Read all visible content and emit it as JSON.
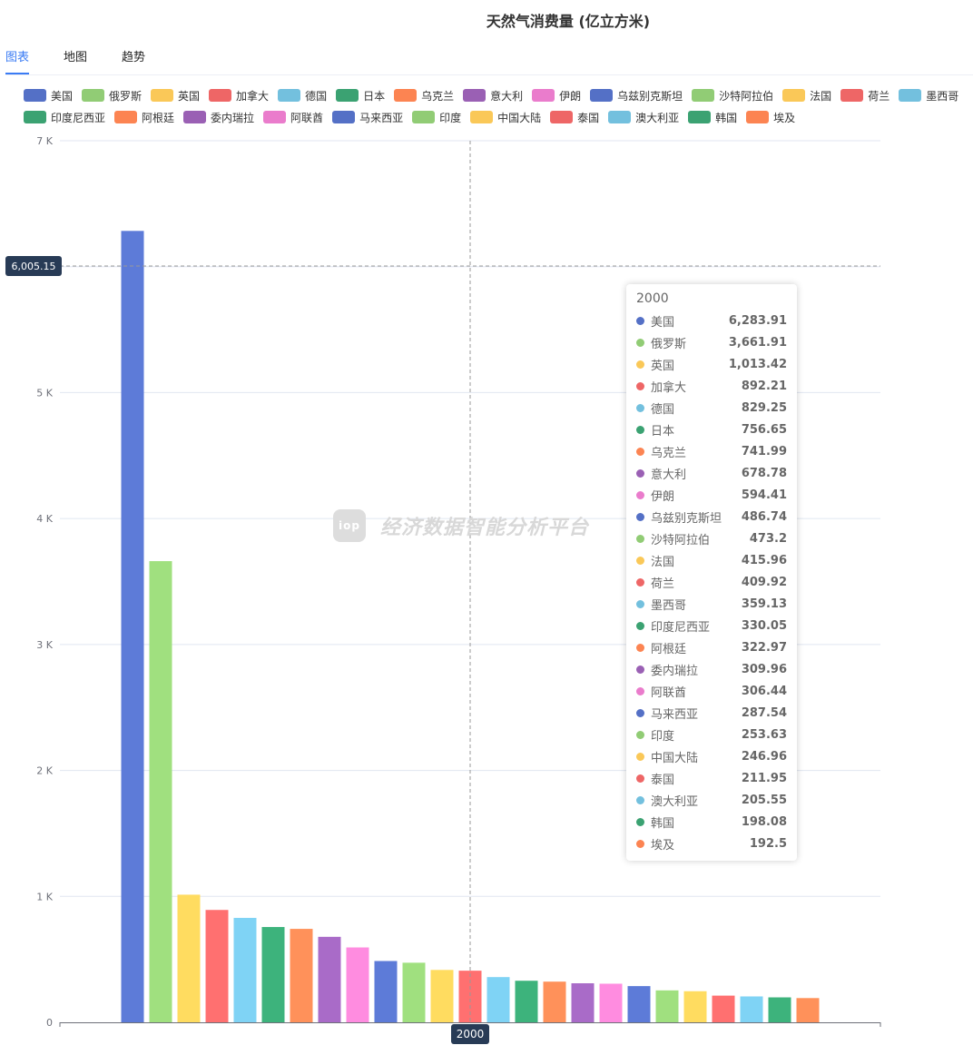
{
  "title": "天然气消费量 (亿立方米)",
  "tabs": [
    {
      "label": "图表",
      "active": true
    },
    {
      "label": "地图"
    },
    {
      "label": "趋势"
    }
  ],
  "watermark": "经济数据智能分析平台",
  "chart_data": {
    "type": "bar",
    "title": "天然气消费量 (亿立方米)",
    "categories": [
      "2000"
    ],
    "ylim": [
      0,
      7000
    ],
    "yticks": [
      "0",
      "1 K",
      "2 K",
      "3 K",
      "4 K",
      "5 K",
      "6 K",
      "7 K"
    ],
    "grid": true,
    "legend_position": "top",
    "crosshair_y_label": "6,005.15",
    "crosshair_x_label": "2000",
    "series": [
      {
        "name": "美国",
        "values": [
          6283.91
        ],
        "value_label": "6,283.91"
      },
      {
        "name": "俄罗斯",
        "values": [
          3661.91
        ],
        "value_label": "3,661.91"
      },
      {
        "name": "英国",
        "values": [
          1013.42
        ],
        "value_label": "1,013.42"
      },
      {
        "name": "加拿大",
        "values": [
          892.21
        ],
        "value_label": "892.21"
      },
      {
        "name": "德国",
        "values": [
          829.25
        ],
        "value_label": "829.25"
      },
      {
        "name": "日本",
        "values": [
          756.65
        ],
        "value_label": "756.65"
      },
      {
        "name": "乌克兰",
        "values": [
          741.99
        ],
        "value_label": "741.99"
      },
      {
        "name": "意大利",
        "values": [
          678.78
        ],
        "value_label": "678.78"
      },
      {
        "name": "伊朗",
        "values": [
          594.41
        ],
        "value_label": "594.41"
      },
      {
        "name": "乌兹别克斯坦",
        "values": [
          486.74
        ],
        "value_label": "486.74"
      },
      {
        "name": "沙特阿拉伯",
        "values": [
          473.2
        ],
        "value_label": "473.2"
      },
      {
        "name": "法国",
        "values": [
          415.96
        ],
        "value_label": "415.96"
      },
      {
        "name": "荷兰",
        "values": [
          409.92
        ],
        "value_label": "409.92"
      },
      {
        "name": "墨西哥",
        "values": [
          359.13
        ],
        "value_label": "359.13"
      },
      {
        "name": "印度尼西亚",
        "values": [
          330.05
        ],
        "value_label": "330.05"
      },
      {
        "name": "阿根廷",
        "values": [
          322.97
        ],
        "value_label": "322.97"
      },
      {
        "name": "委内瑞拉",
        "values": [
          309.96
        ],
        "value_label": "309.96"
      },
      {
        "name": "阿联酋",
        "values": [
          306.44
        ],
        "value_label": "306.44"
      },
      {
        "name": "马来西亚",
        "values": [
          287.54
        ],
        "value_label": "287.54"
      },
      {
        "name": "印度",
        "values": [
          253.63
        ],
        "value_label": "253.63"
      },
      {
        "name": "中国大陆",
        "values": [
          246.96
        ],
        "value_label": "246.96"
      },
      {
        "name": "泰国",
        "values": [
          211.95
        ],
        "value_label": "211.95"
      },
      {
        "name": "澳大利亚",
        "values": [
          205.55
        ],
        "value_label": "205.55"
      },
      {
        "name": "韩国",
        "values": [
          198.08
        ],
        "value_label": "198.08"
      },
      {
        "name": "埃及",
        "values": [
          192.5
        ],
        "value_label": "192.5"
      }
    ],
    "palette": [
      "#5470c6",
      "#91cc75",
      "#fac858",
      "#ee6666",
      "#73c0de",
      "#3ba272",
      "#fc8452",
      "#9a60b4",
      "#ea7ccc"
    ],
    "bar_palette": [
      "#5d7bd8",
      "#a0e07f",
      "#ffdc60",
      "#ff7070",
      "#7fd3f5",
      "#3db37c",
      "#ff915a",
      "#a96bc8",
      "#ff8ce0"
    ]
  },
  "tooltip": {
    "header": "2000"
  }
}
